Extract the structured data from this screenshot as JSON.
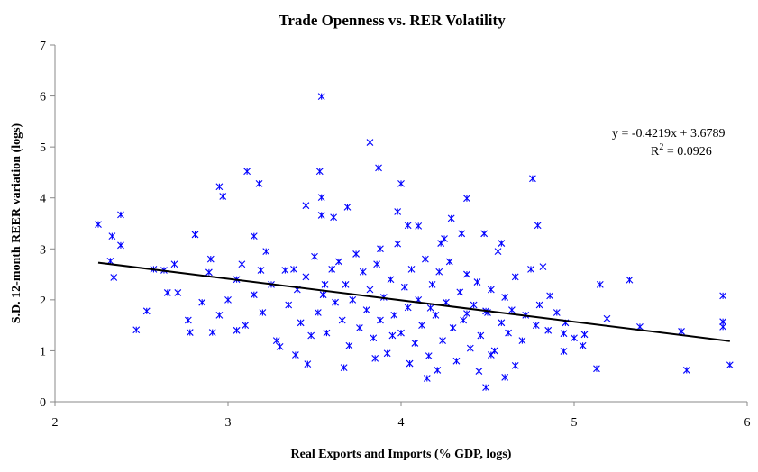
{
  "chart_data": {
    "type": "scatter",
    "title": "Trade Openness vs. RER Volatility",
    "x_label": "Real Exports and Imports (% GDP, logs)",
    "y_label": "S.D. 12-month REER variation (logs)",
    "color": "#0000ff",
    "xlim": [
      2,
      6
    ],
    "xticks": [
      2,
      3,
      4,
      5,
      6
    ],
    "ylim": [
      0,
      7
    ],
    "yticks": [
      0,
      1,
      2,
      3,
      4,
      5,
      6,
      7
    ],
    "x": [
      2.25,
      2.33,
      2.38,
      2.38,
      2.32,
      2.34,
      2.47,
      2.53,
      2.57,
      2.63,
      2.65,
      2.69,
      2.71,
      2.77,
      2.78,
      2.81,
      2.89,
      2.91,
      2.95,
      2.97,
      3.05,
      3.05,
      3.11,
      3.15,
      3.18,
      3.19,
      3.33,
      3.3,
      3.39,
      3.46,
      3.45,
      3.54,
      3.53,
      3.54,
      3.54,
      3.61,
      3.69,
      3.67,
      3.82,
      3.87,
      3.98,
      4.0,
      4.04,
      4.15,
      4.17,
      4.21,
      4.23,
      4.29,
      4.38,
      4.38,
      4.49,
      4.49,
      4.52,
      4.58,
      4.6,
      4.66,
      4.76,
      4.79,
      4.82,
      4.86,
      4.94,
      4.94,
      5.06,
      5.13,
      5.15,
      5.19,
      5.32,
      5.38,
      5.62,
      5.65,
      5.86,
      5.86,
      5.86,
      5.9,
      3.35,
      3.4,
      3.42,
      3.45,
      3.48,
      3.5,
      3.52,
      3.55,
      3.57,
      3.6,
      3.62,
      3.64,
      3.66,
      3.68,
      3.7,
      3.72,
      3.74,
      3.76,
      3.78,
      3.8,
      3.82,
      3.84,
      3.86,
      3.88,
      3.9,
      3.92,
      3.94,
      3.96,
      3.98,
      4.0,
      4.02,
      4.04,
      4.06,
      4.08,
      4.1,
      4.12,
      4.14,
      4.16,
      4.18,
      4.2,
      4.22,
      4.24,
      4.26,
      4.28,
      4.3,
      4.32,
      4.34,
      4.36,
      4.38,
      4.4,
      4.42,
      4.44,
      4.46,
      4.48,
      4.5,
      4.52,
      4.54,
      4.56,
      4.58,
      4.6,
      4.62,
      4.64,
      4.66,
      4.7,
      4.72,
      4.75,
      4.78,
      4.8,
      4.85,
      4.9,
      4.95,
      5.0,
      5.05,
      3.1,
      3.15,
      3.2,
      3.25,
      3.28,
      3.0,
      2.95,
      2.9,
      2.85,
      3.08,
      3.22,
      3.38,
      3.88,
      4.1,
      4.25,
      4.35,
      3.56,
      3.95,
      4.05,
      4.45,
      3.85
    ],
    "values": [
      3.48,
      3.25,
      3.67,
      3.07,
      2.76,
      2.44,
      1.41,
      1.78,
      2.6,
      2.58,
      2.14,
      2.7,
      2.14,
      1.6,
      1.36,
      3.28,
      2.54,
      1.36,
      4.22,
      4.03,
      2.4,
      1.4,
      4.52,
      3.25,
      4.28,
      2.58,
      2.58,
      1.08,
      0.92,
      0.74,
      3.85,
      5.99,
      4.52,
      4.01,
      3.66,
      3.62,
      3.82,
      0.67,
      5.09,
      4.59,
      3.73,
      4.28,
      3.46,
      0.46,
      1.84,
      0.62,
      3.11,
      3.6,
      3.99,
      1.73,
      1.78,
      0.28,
      0.92,
      3.11,
      0.48,
      0.71,
      4.38,
      3.46,
      2.65,
      2.08,
      1.34,
      0.99,
      1.32,
      0.65,
      2.3,
      1.63,
      2.39,
      1.47,
      1.38,
      0.62,
      2.08,
      1.57,
      1.47,
      0.72,
      1.9,
      2.2,
      1.55,
      2.45,
      1.3,
      2.85,
      1.75,
      2.1,
      1.35,
      2.6,
      1.95,
      2.75,
      1.6,
      2.3,
      1.1,
      2.0,
      2.9,
      1.45,
      2.55,
      1.8,
      2.2,
      1.25,
      2.7,
      1.6,
      2.05,
      0.95,
      2.4,
      1.7,
      3.1,
      1.35,
      2.25,
      1.85,
      2.6,
      1.15,
      2.0,
      1.5,
      2.8,
      0.9,
      2.3,
      1.7,
      2.55,
      1.2,
      1.95,
      2.75,
      1.45,
      0.8,
      2.15,
      1.6,
      2.5,
      1.05,
      1.9,
      2.35,
      1.3,
      3.3,
      1.75,
      2.2,
      1.0,
      2.95,
      1.55,
      2.05,
      1.35,
      1.8,
      2.45,
      1.2,
      1.7,
      2.6,
      1.5,
      1.9,
      1.4,
      1.75,
      1.55,
      1.25,
      1.1,
      1.5,
      2.1,
      1.75,
      2.3,
      1.2,
      2.0,
      1.7,
      2.8,
      1.95,
      2.7,
      2.95,
      2.6,
      3.0,
      3.45,
      3.2,
      3.3,
      2.3,
      1.3,
      0.75,
      0.6,
      0.85
    ],
    "trendline": {
      "slope": -0.4219,
      "intercept": 3.6789,
      "label": "y = -0.4219x + 3.6789",
      "r2_label": {
        "base": "R",
        "sup": "2",
        "rest": " = 0.0926"
      }
    }
  }
}
